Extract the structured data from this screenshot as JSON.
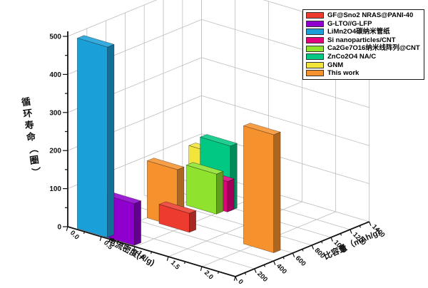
{
  "figure": {
    "background": "#ffffff",
    "kind": "origin-style 3D bar chart"
  },
  "chart_data": {
    "type": "bar",
    "projection": "3d",
    "title": "",
    "axes": {
      "x": {
        "label": "电流密度(A/g)",
        "min": 0,
        "max": 2.5,
        "major_tick": 0.5,
        "minor_tick": 0.25,
        "tick_labels": [
          "0.0",
          "0.5",
          "1.0",
          "1.5",
          "2.0"
        ]
      },
      "y": {
        "label": "循环寿命（圈）",
        "min": 0,
        "max": 500,
        "major_tick": 100,
        "minor_tick": 50,
        "tick_labels": [
          "0",
          "100",
          "200",
          "300",
          "400",
          "500"
        ]
      },
      "z": {
        "label": "比容量（mAh/g）",
        "min": 0,
        "max": 1400,
        "major_tick": 200,
        "minor_tick": 100,
        "tick_labels": [
          "0",
          "200",
          "400",
          "600",
          "800",
          "1000",
          "1200",
          "1400"
        ]
      }
    },
    "grid": {
      "on": true,
      "color": "#bdbdbd"
    },
    "axis_color": "#111111",
    "legend": {
      "position": "top-right",
      "items": [
        {
          "label": "GF@Sno2 NRAS@PANI-40",
          "color": "#ED3B2F"
        },
        {
          "label": "G-LTO//G-LFP",
          "color": "#8F00CE"
        },
        {
          "label": "LiMn2O4碳纳米管纸",
          "color": "#1B9FD8"
        },
        {
          "label": "Si nanoparticles/CNT",
          "color": "#E4007C"
        },
        {
          "label": "Ca2Ge7O16纳米线阵列@CNT",
          "color": "#8FE22E"
        },
        {
          "label": "ZnCo2O4 NA/C",
          "color": "#00C882"
        },
        {
          "label": "GNM",
          "color": "#F2E43A"
        },
        {
          "label": "This work",
          "color": "#F5922E"
        }
      ]
    },
    "series": [
      {
        "label": "LiMn2O4碳纳米管纸",
        "color": "#1B9FD8",
        "current_density": 0.12,
        "capacity": 15,
        "cycle_life": 500
      },
      {
        "label": "G-LTO//G-LFP",
        "color": "#8F00CE",
        "current_density": 0.52,
        "capacity": 15,
        "cycle_life": 110
      },
      {
        "label": "GF@Sno2 NRAS@PANI-40",
        "color": "#ED3B2F",
        "current_density": 0.72,
        "capacity": 450,
        "cycle_life": 50
      },
      {
        "label": "This work",
        "color": "#F5922E",
        "current_density": 0.5,
        "capacity": 480,
        "cycle_life": 150
      },
      {
        "label": "This work",
        "color": "#F5922E",
        "current_density": 1.88,
        "capacity": 520,
        "cycle_life": 310
      },
      {
        "label": "GNM",
        "color": "#F2E43A",
        "current_density": 0.38,
        "capacity": 1000,
        "cycle_life": 130
      },
      {
        "label": "ZnCo2O4 NA/C",
        "color": "#00C882",
        "current_density": 0.62,
        "capacity": 950,
        "cycle_life": 170
      },
      {
        "label": "Si nanoparticles/CNT",
        "color": "#E4007C",
        "current_density": 0.62,
        "capacity": 920,
        "cycle_life": 80
      },
      {
        "label": "Ca2Ge7O16纳米线阵列@CNT",
        "color": "#8FE22E",
        "current_density": 0.57,
        "capacity": 840,
        "cycle_life": 105
      }
    ]
  }
}
